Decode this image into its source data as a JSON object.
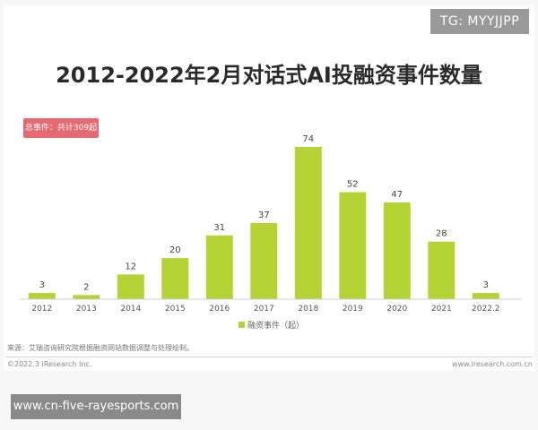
{
  "badge": "TG: MYYJJPP",
  "total_badge": "总事件：共计309起",
  "source": "来源：艾瑞咨询研究院根据融资网站数据调整与处理绘制。",
  "copyright": "©2022.3 iResearch Inc.",
  "website": "www.iresearch.com.cn",
  "watermark": "www.cn-five-rayesports.com",
  "colors": {
    "bar": "#b5d334",
    "badge_total": "#e56a72"
  },
  "chart_data": {
    "type": "bar",
    "title": "2012-2022年2月对话式AI投融资事件数量",
    "categories": [
      "2012",
      "2013",
      "2014",
      "2015",
      "2016",
      "2017",
      "2018",
      "2019",
      "2020",
      "2021",
      "2022.2"
    ],
    "series": [
      {
        "name": "融资事件（起）",
        "values": [
          3,
          2,
          12,
          20,
          31,
          37,
          74,
          52,
          47,
          28,
          3
        ]
      }
    ],
    "ylim": [
      0,
      74
    ],
    "grid": false,
    "legend": "bottom-center",
    "data_labels": true
  }
}
